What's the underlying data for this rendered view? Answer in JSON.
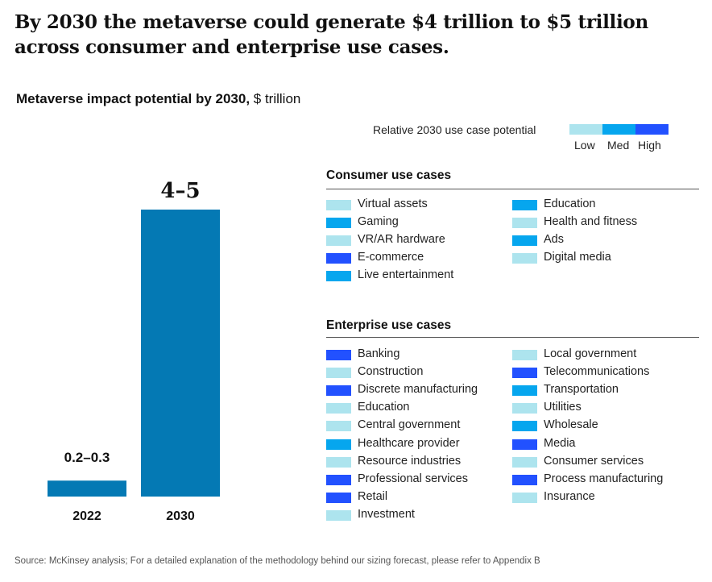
{
  "headline": "By 2030 the metaverse could generate $4 trillion to $5 trillion across consumer and enterprise use cases.",
  "chart_title": {
    "bold": "Metaverse impact potential by 2030,",
    "unit": " $ trillion"
  },
  "potential_key": {
    "label": "Relative 2030 use case potential",
    "levels": [
      {
        "label": "Low",
        "color": "#ade4ee"
      },
      {
        "label": "Med",
        "color": "#06a6ee"
      },
      {
        "label": "High",
        "color": "#2251ff"
      }
    ]
  },
  "chart_data": {
    "type": "bar",
    "categories": [
      "2022",
      "2030"
    ],
    "values": [
      0.25,
      4.5
    ],
    "data_labels": [
      "0.2–0.3",
      "4–5"
    ],
    "range_low": [
      0.2,
      4
    ],
    "range_high": [
      0.3,
      5
    ],
    "bar_color": "#0479b4",
    "ylim": [
      0,
      4.5
    ],
    "grid": false
  },
  "consumer": {
    "title": "Consumer use cases",
    "items": [
      {
        "label": "Virtual assets",
        "level": "Low"
      },
      {
        "label": "Gaming",
        "level": "Med"
      },
      {
        "label": "VR/AR hardware",
        "level": "Low"
      },
      {
        "label": "E-commerce",
        "level": "High"
      },
      {
        "label": "Live entertainment",
        "level": "Med"
      },
      {
        "label": "Education",
        "level": "Med"
      },
      {
        "label": "Health and fitness",
        "level": "Low"
      },
      {
        "label": "Ads",
        "level": "Med"
      },
      {
        "label": "Digital media",
        "level": "Low"
      }
    ]
  },
  "enterprise": {
    "title": "Enterprise use cases",
    "items": [
      {
        "label": "Banking",
        "level": "High"
      },
      {
        "label": "Construction",
        "level": "Low"
      },
      {
        "label": "Discrete manufacturing",
        "level": "High"
      },
      {
        "label": "Education",
        "level": "Low"
      },
      {
        "label": "Central government",
        "level": "Low"
      },
      {
        "label": "Healthcare provider",
        "level": "Med"
      },
      {
        "label": "Resource industries",
        "level": "Low"
      },
      {
        "label": "Professional services",
        "level": "High"
      },
      {
        "label": "Retail",
        "level": "High"
      },
      {
        "label": "Investment",
        "level": "Low"
      },
      {
        "label": "Local government",
        "level": "Low"
      },
      {
        "label": "Telecommunications",
        "level": "High"
      },
      {
        "label": "Transportation",
        "level": "Med"
      },
      {
        "label": "Utilities",
        "level": "Low"
      },
      {
        "label": "Wholesale",
        "level": "Med"
      },
      {
        "label": "Media",
        "level": "High"
      },
      {
        "label": "Consumer services",
        "level": "Low"
      },
      {
        "label": "Process manufacturing",
        "level": "High"
      },
      {
        "label": "Insurance",
        "level": "Low"
      }
    ]
  },
  "source": "Source: McKinsey analysis; For a detailed explanation of the methodology behind our sizing forecast, please refer to Appendix B"
}
